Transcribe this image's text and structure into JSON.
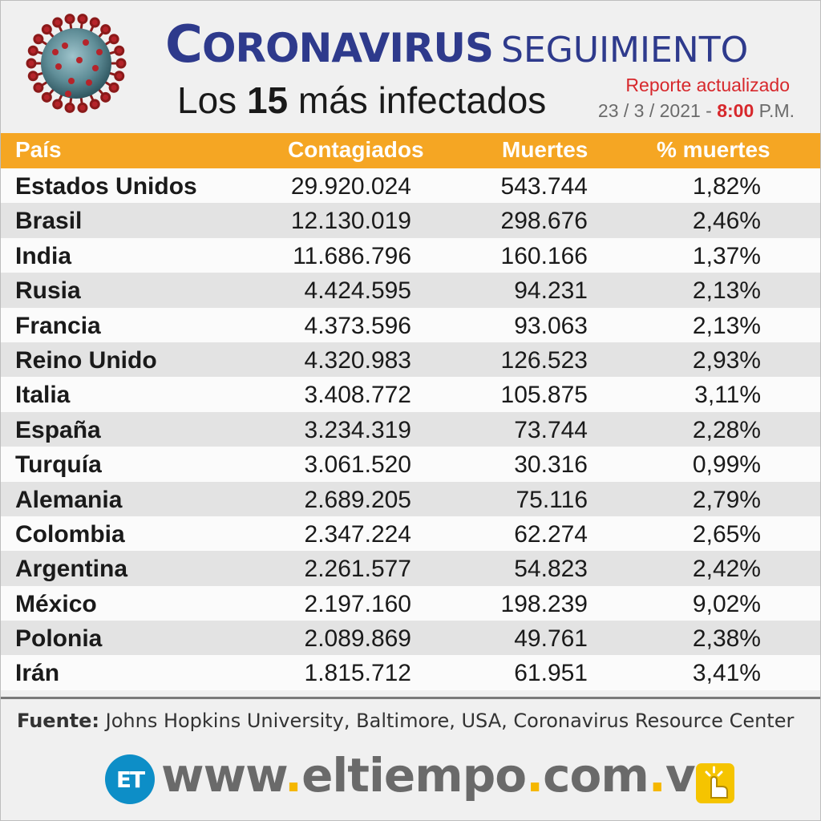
{
  "header": {
    "title_main": "Coronavirus",
    "title_secondary": "seguimiento",
    "subtitle_prefix": "Los ",
    "subtitle_number": "15",
    "subtitle_suffix": " más infectados",
    "report_label": "Reporte actualizado",
    "report_date": "23 / 3 / 2021 - ",
    "report_time": "8:00",
    "report_ampm": " P.M."
  },
  "chart_data": {
    "type": "table",
    "columns": [
      "País",
      "Contagiados",
      "Muertes",
      "% muertes"
    ],
    "rows": [
      [
        "Estados Unidos",
        "29.920.024",
        "543.744",
        "1,82%"
      ],
      [
        "Brasil",
        "12.130.019",
        "298.676",
        "2,46%"
      ],
      [
        "India",
        "11.686.796",
        "160.166",
        "1,37%"
      ],
      [
        "Rusia",
        "4.424.595",
        "94.231",
        "2,13%"
      ],
      [
        "Francia",
        "4.373.596",
        "93.063",
        "2,13%"
      ],
      [
        "Reino Unido",
        "4.320.983",
        "126.523",
        "2,93%"
      ],
      [
        "Italia",
        "3.408.772",
        "105.875",
        "3,11%"
      ],
      [
        "España",
        "3.234.319",
        "73.744",
        "2,28%"
      ],
      [
        "Turquía",
        "3.061.520",
        "30.316",
        "0,99%"
      ],
      [
        "Alemania",
        "2.689.205",
        "75.116",
        "2,79%"
      ],
      [
        "Colombia",
        "2.347.224",
        "62.274",
        "2,65%"
      ],
      [
        "Argentina",
        "2.261.577",
        "54.823",
        "2,42%"
      ],
      [
        "México",
        "2.197.160",
        "198.239",
        "9,02%"
      ],
      [
        "Polonia",
        "2.089.869",
        "49.761",
        "2,38%"
      ],
      [
        "Irán",
        "1.815.712",
        "61.951",
        "3,41%"
      ]
    ]
  },
  "source": {
    "label": "Fuente:",
    "text": " Johns Hopkins University, Baltimore, USA, Coronavirus Resource Center"
  },
  "footer": {
    "logo_text": "ET",
    "site_www": "www",
    "site_name": "eltiempo",
    "site_com": "com",
    "site_ve": "ve"
  },
  "colors": {
    "header_bar": "#f5a623",
    "title_blue": "#2e3a8c",
    "accent_red": "#d7282c",
    "logo_blue": "#0d8ec7"
  }
}
